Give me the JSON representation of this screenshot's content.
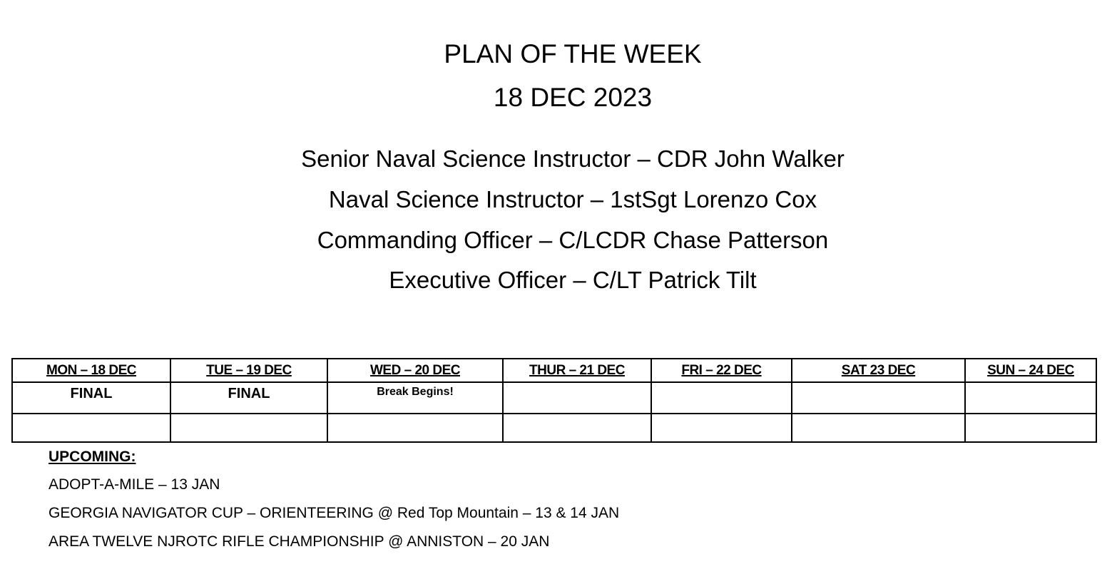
{
  "header": {
    "title": "PLAN OF THE WEEK",
    "date": "18 DEC 2023"
  },
  "staff": [
    "Senior Naval Science Instructor – CDR John Walker",
    "Naval Science Instructor – 1stSgt Lorenzo Cox",
    "Commanding Officer – C/LCDR Chase Patterson",
    "Executive Officer – C/LT Patrick Tilt"
  ],
  "schedule": {
    "days": [
      "MON – 18 DEC",
      "TUE – 19 DEC",
      "WED – 20 DEC",
      "THUR – 21 DEC",
      "FRI – 22 DEC",
      "SAT  23 DEC",
      "SUN – 24 DEC"
    ],
    "row1": [
      "FINAL",
      "FINAL",
      "Break Begins!",
      "",
      "",
      "",
      ""
    ],
    "row2": [
      "",
      "",
      "",
      "",
      "",
      "",
      ""
    ]
  },
  "upcoming": {
    "heading": "UPCOMING:",
    "items": [
      "ADOPT-A-MILE – 13 JAN",
      "GEORGIA NAVIGATOR CUP – ORIENTEERING @ Red Top Mountain – 13 & 14 JAN",
      "AREA TWELVE NJROTC RIFLE CHAMPIONSHIP @ ANNISTON – 20 JAN"
    ]
  }
}
